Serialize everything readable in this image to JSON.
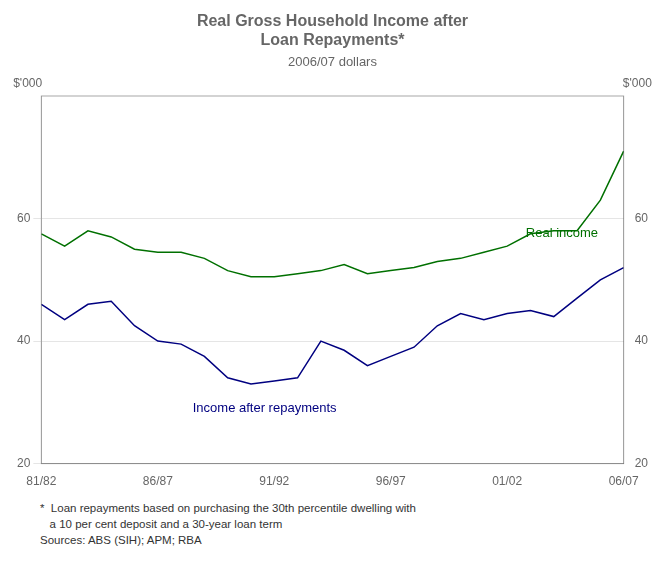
{
  "chart_data": {
    "type": "line",
    "title": [
      "Real Gross Household Income after",
      "Loan Repayments*"
    ],
    "subtitle": "2006/07 dollars",
    "ylabel": "$'000",
    "y2label": "$'000",
    "footnote": [
      "*  Loan repayments based on purchasing the 30th percentile dwelling with",
      "   a 10 per cent deposit and a 30-year loan term",
      "Sources: ABS (SIH); APM; RBA"
    ],
    "x": [
      1981,
      1982,
      1983,
      1984,
      1985,
      1986,
      1987,
      1988,
      1989,
      1990,
      1991,
      1992,
      1993,
      1994,
      1995,
      1996,
      1997,
      1998,
      1999,
      2000,
      2001,
      2002,
      2003,
      2004,
      2005,
      2006
    ],
    "series": [
      {
        "name": "Real income",
        "color": "#007000",
        "values": [
          57.5,
          55.5,
          58.0,
          57.0,
          55.0,
          54.5,
          54.5,
          53.5,
          51.5,
          50.5,
          50.5,
          51.0,
          51.5,
          52.5,
          51.0,
          51.5,
          52.0,
          53.0,
          53.5,
          54.5,
          55.5,
          57.5,
          58.0,
          58.0,
          63.0,
          71.0
        ]
      },
      {
        "name": "Income after repayments",
        "color": "#000080",
        "values": [
          46.0,
          43.5,
          46.0,
          46.5,
          42.5,
          40.0,
          39.5,
          37.5,
          34.0,
          33.0,
          33.5,
          34.0,
          40.0,
          38.5,
          36.0,
          37.5,
          39.0,
          42.5,
          44.5,
          43.5,
          44.5,
          45.0,
          44.0,
          47.0,
          50.0,
          52.0
        ]
      }
    ],
    "xlim": [
      1981,
      2006
    ],
    "xticks": [
      {
        "value": 1981,
        "label": "81/82"
      },
      {
        "value": 1986,
        "label": "86/87"
      },
      {
        "value": 1991,
        "label": "91/92"
      },
      {
        "value": 1996,
        "label": "96/97"
      },
      {
        "value": 2001,
        "label": "01/02"
      },
      {
        "value": 2006,
        "label": "06/07"
      }
    ],
    "ylim": [
      20,
      80
    ],
    "yticks": [
      20,
      40,
      60
    ],
    "y2lim": [
      20,
      80
    ],
    "y2ticks": [
      20,
      40,
      60
    ],
    "grid": true,
    "annotations": [
      {
        "text": "Real income",
        "x": 2001.8,
        "y": 57.5,
        "color": "#007000"
      },
      {
        "text": "Income after repayments",
        "x": 1987.5,
        "y": 29.0,
        "color": "#000080"
      }
    ]
  }
}
